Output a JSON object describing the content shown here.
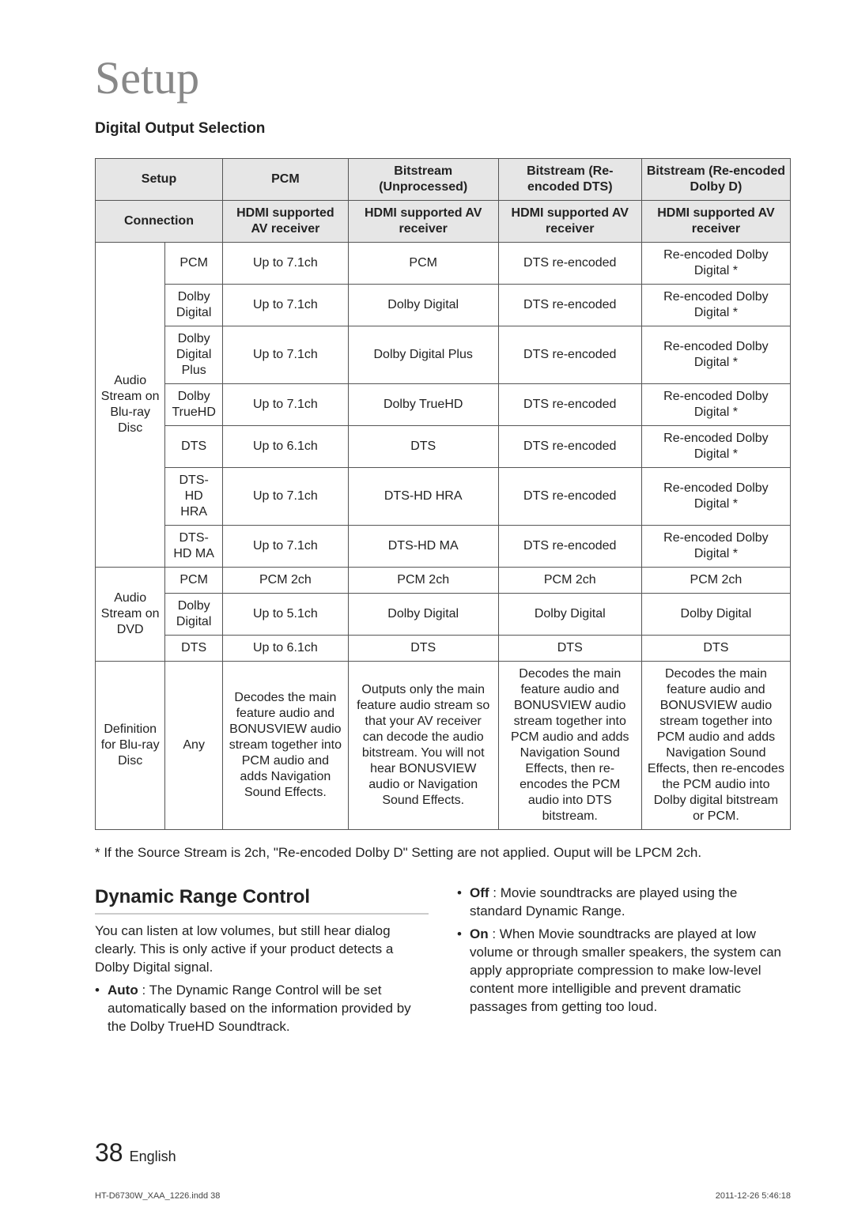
{
  "title": "Setup",
  "section_subtitle": "Digital Output Selection",
  "table": {
    "header_row1": [
      "Setup",
      "PCM",
      "Bitstream (Unprocessed)",
      "Bitstream (Re-encoded DTS)",
      "Bitstream (Re-encoded Dolby D)"
    ],
    "header_row2": [
      "Connection",
      "HDMI supported AV receiver",
      "HDMI supported AV receiver",
      "HDMI supported AV receiver",
      "HDMI supported AV receiver"
    ],
    "groups": [
      {
        "label": "Audio Stream on Blu-ray Disc",
        "rows": [
          [
            "PCM",
            "Up to 7.1ch",
            "PCM",
            "DTS re-encoded",
            "Re-encoded Dolby Digital *"
          ],
          [
            "Dolby Digital",
            "Up to 7.1ch",
            "Dolby Digital",
            "DTS re-encoded",
            "Re-encoded Dolby Digital *"
          ],
          [
            "Dolby Digital Plus",
            "Up to 7.1ch",
            "Dolby Digital Plus",
            "DTS re-encoded",
            "Re-encoded Dolby Digital *"
          ],
          [
            "Dolby TrueHD",
            "Up to 7.1ch",
            "Dolby TrueHD",
            "DTS re-encoded",
            "Re-encoded Dolby Digital *"
          ],
          [
            "DTS",
            "Up to 6.1ch",
            "DTS",
            "DTS re-encoded",
            "Re-encoded Dolby Digital *"
          ],
          [
            "DTS-HD HRA",
            "Up to 7.1ch",
            "DTS-HD HRA",
            "DTS re-encoded",
            "Re-encoded Dolby Digital *"
          ],
          [
            "DTS-HD MA",
            "Up to 7.1ch",
            "DTS-HD MA",
            "DTS re-encoded",
            "Re-encoded Dolby Digital *"
          ]
        ]
      },
      {
        "label": "Audio Stream on DVD",
        "rows": [
          [
            "PCM",
            "PCM 2ch",
            "PCM 2ch",
            "PCM 2ch",
            "PCM 2ch"
          ],
          [
            "Dolby Digital",
            "Up to 5.1ch",
            "Dolby Digital",
            "Dolby Digital",
            "Dolby Digital"
          ],
          [
            "DTS",
            "Up to 6.1ch",
            "DTS",
            "DTS",
            "DTS"
          ]
        ]
      },
      {
        "label": "Definition for Blu-ray Disc",
        "rows": [
          [
            "Any",
            "Decodes the main feature audio and BONUSVIEW audio stream together into PCM audio and adds Navigation Sound Effects.",
            "Outputs only the main feature audio stream so that your AV receiver can decode the audio bitstream. You will not hear BONUSVIEW audio or Navigation Sound Effects.",
            "Decodes the main feature audio and BONUSVIEW audio stream together into PCM audio and adds Navigation Sound Effects, then re-encodes the PCM audio into DTS bitstream.",
            "Decodes the main feature audio and BONUSVIEW audio stream together into PCM audio and adds Navigation Sound Effects, then re-encodes the PCM audio into Dolby digital bitstream or PCM."
          ]
        ],
        "definition": true
      }
    ]
  },
  "footnote": "* If the Source Stream is 2ch, \"Re-encoded Dolby D\" Setting are not applied. Ouput will be LPCM 2ch.",
  "drc": {
    "title": "Dynamic Range Control",
    "intro": "You can listen at low volumes, but still hear dialog clearly. This is only active if your product detects a Dolby Digital signal.",
    "auto_label": "Auto",
    "auto_text": " : The Dynamic Range Control will be set automatically based on the information provided by the Dolby TrueHD Soundtrack.",
    "off_label": "Off",
    "off_text": " : Movie soundtracks are played using the standard Dynamic Range.",
    "on_label": "On",
    "on_text": " : When Movie soundtracks are played at low volume or through smaller speakers, the system can apply appropriate compression to make low-level content more intelligible and prevent dramatic passages from getting too loud."
  },
  "footer": {
    "page_num": "38",
    "lang": "English",
    "print_file": "HT-D6730W_XAA_1226.indd   38",
    "print_time": "2011-12-26    5:46:18"
  }
}
